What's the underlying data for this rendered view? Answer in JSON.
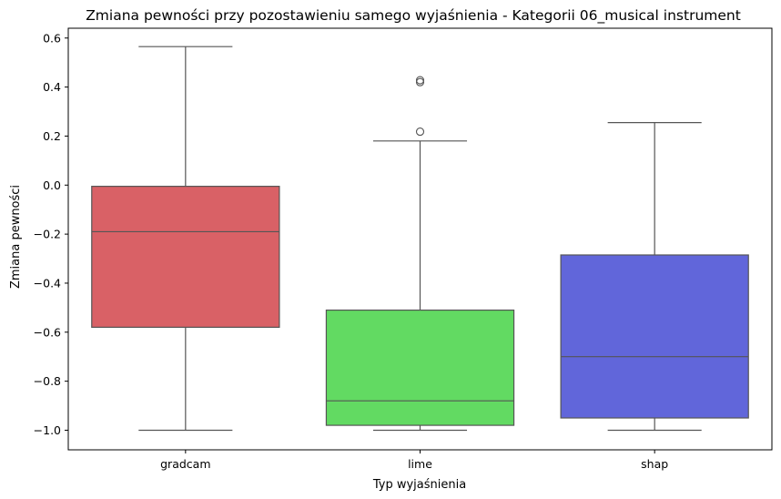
{
  "chart_data": {
    "type": "box",
    "title": "Zmiana pewności przy pozostawieniu samego wyjaśnienia - Kategorii 06_musical instrument",
    "xlabel": "Typ wyjaśnienia",
    "ylabel": "Zmiana pewności",
    "categories": [
      "gradcam",
      "lime",
      "shap"
    ],
    "ylim": [
      -1.08,
      0.64
    ],
    "yticks": [
      -1.0,
      -0.8,
      -0.6,
      -0.4,
      -0.2,
      0.0,
      0.2,
      0.4,
      0.6
    ],
    "ytick_labels": [
      "−1.0",
      "−0.8",
      "−0.6",
      "−0.4",
      "−0.2",
      "0.0",
      "0.2",
      "0.4",
      "0.6"
    ],
    "grid": false,
    "boxes": [
      {
        "category": "gradcam",
        "whisker_low": -1.0,
        "q1": -0.58,
        "median": -0.19,
        "q3": -0.005,
        "whisker_high": 0.565,
        "outliers": [],
        "color": "#d96166"
      },
      {
        "category": "lime",
        "whisker_low": -1.0,
        "q1": -0.98,
        "median": -0.88,
        "q3": -0.51,
        "whisker_high": 0.18,
        "outliers": [
          0.218,
          0.42,
          0.428
        ],
        "color": "#62da62"
      },
      {
        "category": "shap",
        "whisker_low": -1.0,
        "q1": -0.95,
        "median": -0.7,
        "q3": -0.285,
        "whisker_high": 0.255,
        "outliers": [],
        "color": "#6166da"
      }
    ]
  }
}
